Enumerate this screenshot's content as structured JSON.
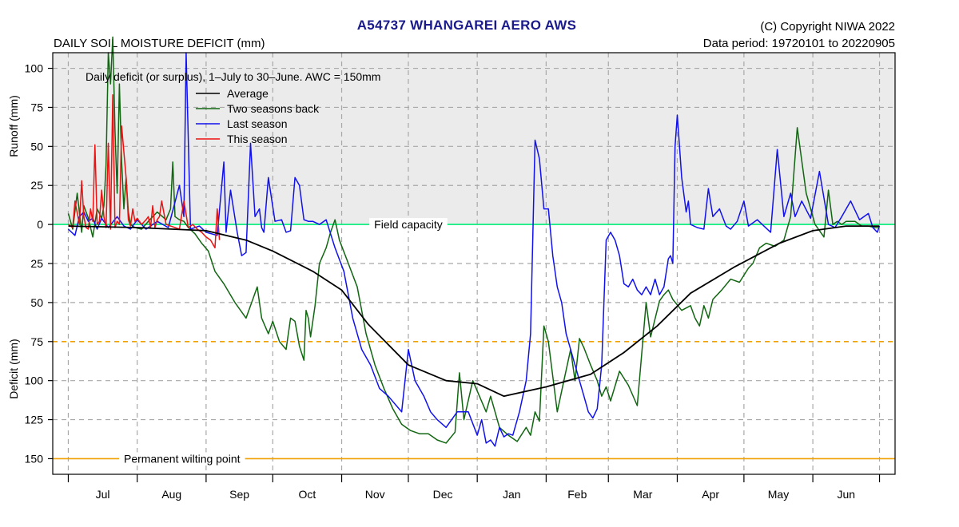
{
  "header": {
    "title": "A54737  WHANGAREI AERO AWS",
    "copyright": "(C) Copyright NIWA  2022",
    "data_period": "Data period:  19720101  to  20220905",
    "subtitle": "DAILY SOIL MOISTURE DEFICIT (mm)"
  },
  "chart_data": {
    "type": "line",
    "title": "A54737  WHANGAREI AERO AWS",
    "subtitle": "DAILY SOIL MOISTURE DEFICIT (mm)",
    "note": "Daily deficit (or surplus), 1–July to 30–June.  AWC = 150mm",
    "y_runoff_label": "Runoff (mm)",
    "y_deficit_label": "Deficit (mm)",
    "ylim": [
      -110,
      160
    ],
    "y_ticks": [
      -100,
      -75,
      -50,
      -25,
      0,
      25,
      50,
      75,
      100,
      125,
      150
    ],
    "y_tick_labels": [
      "100",
      "75",
      "50",
      "25",
      "0",
      "25",
      "50",
      "75",
      "100",
      "125",
      "150"
    ],
    "xlim": [
      -7,
      372
    ],
    "month_labels": [
      "Jul",
      "Aug",
      "Sep",
      "Oct",
      "Nov",
      "Dec",
      "Jan",
      "Feb",
      "Mar",
      "Apr",
      "May",
      "Jun"
    ],
    "month_starts": [
      0,
      31,
      62,
      92,
      123,
      153,
      184,
      215,
      243,
      274,
      304,
      335,
      365
    ],
    "reference_lines": [
      {
        "name": "Field capacity",
        "value": 0,
        "color": "#00ee77",
        "style": "solid"
      },
      {
        "name": "",
        "value": 75,
        "color": "#f0a000",
        "style": "dashed"
      },
      {
        "name": "Permanent wilting point",
        "value": 150,
        "color": "#f0a000",
        "style": "solid"
      }
    ],
    "grid": true,
    "legend_position": "top-left",
    "series": [
      {
        "name": "Average",
        "color": "#000000",
        "x": [
          0,
          31,
          62,
          80,
          92,
          110,
          123,
          135,
          153,
          170,
          184,
          196,
          215,
          235,
          250,
          265,
          280,
          300,
          320,
          335,
          350,
          365
        ],
        "y": [
          1,
          2,
          4,
          10,
          17,
          30,
          42,
          64,
          90,
          100,
          102,
          110,
          104,
          96,
          82,
          65,
          44,
          27,
          12,
          4,
          1,
          1
        ]
      },
      {
        "name": "Two seasons back",
        "color": "#116611",
        "x": [
          0,
          2,
          4,
          6,
          7,
          9,
          11,
          13,
          15,
          16,
          17,
          18,
          19,
          20,
          21,
          22,
          23,
          24,
          25,
          26,
          27,
          28,
          30,
          33,
          36,
          40,
          44,
          46,
          47,
          48,
          50,
          52,
          54,
          57,
          60,
          63,
          66,
          70,
          75,
          80,
          85,
          87,
          90,
          92,
          95,
          98,
          100,
          102,
          104,
          106,
          107,
          108,
          109,
          111,
          113,
          116,
          118,
          120,
          122,
          126,
          130,
          134,
          138,
          142,
          146,
          150,
          154,
          158,
          162,
          164,
          166,
          170,
          174,
          176,
          178,
          182,
          188,
          190,
          194,
          198,
          202,
          206,
          208,
          210,
          212,
          214,
          216,
          220,
          223,
          226,
          228,
          230,
          232,
          235,
          238,
          240,
          242,
          244,
          248,
          252,
          256,
          260,
          262,
          266,
          268,
          270,
          272,
          276,
          280,
          282,
          284,
          286,
          288,
          290,
          294,
          298,
          302,
          306,
          308,
          311,
          314,
          318,
          322,
          325,
          328,
          332,
          336,
          340,
          342,
          344,
          346,
          348,
          350,
          354,
          357,
          360,
          363,
          365
        ],
        "y": [
          -7,
          3,
          -20,
          5,
          -12,
          -4,
          8,
          -10,
          -4,
          -12,
          -38,
          -110,
          -90,
          -120,
          -60,
          -20,
          -90,
          -40,
          -10,
          -30,
          -8,
          0,
          2,
          3,
          -2,
          -8,
          -3,
          -10,
          -40,
          -5,
          -3,
          -2,
          2,
          6,
          12,
          17,
          30,
          38,
          50,
          60,
          40,
          60,
          70,
          62,
          75,
          80,
          60,
          62,
          78,
          87,
          55,
          60,
          72,
          52,
          25,
          15,
          5,
          -3,
          10,
          25,
          40,
          70,
          90,
          105,
          118,
          128,
          132,
          134,
          134,
          136,
          138,
          140,
          133,
          95,
          125,
          100,
          120,
          110,
          130,
          135,
          139,
          130,
          135,
          120,
          126,
          65,
          75,
          120,
          100,
          80,
          100,
          73,
          79,
          90,
          100,
          110,
          104,
          113,
          94,
          103,
          116,
          50,
          72,
          49,
          45,
          42,
          48,
          55,
          52,
          60,
          65,
          52,
          60,
          48,
          42,
          35,
          37,
          28,
          25,
          15,
          12,
          14,
          10,
          -5,
          -62,
          -20,
          0,
          8,
          -22,
          0,
          -2,
          0,
          -2,
          -2,
          1,
          1,
          2,
          2
        ]
      },
      {
        "name": "Last season",
        "color": "#1111ee",
        "x": [
          0,
          3,
          5,
          7,
          9,
          11,
          13,
          15,
          18,
          22,
          25,
          28,
          31,
          35,
          40,
          45,
          50,
          52,
          53,
          55,
          57,
          59,
          62,
          67,
          70,
          71,
          73,
          76,
          78,
          80,
          82,
          84,
          86,
          87,
          88,
          90,
          93,
          96,
          98,
          100,
          102,
          104,
          106,
          108,
          110,
          113,
          116,
          120,
          124,
          128,
          132,
          136,
          140,
          144,
          150,
          153,
          156,
          160,
          163,
          166,
          170,
          175,
          180,
          184,
          186,
          188,
          190,
          192,
          194,
          196,
          198,
          200,
          203,
          206,
          208,
          210,
          212,
          214,
          216,
          218,
          220,
          222,
          224,
          226,
          228,
          230,
          232,
          234,
          236,
          238,
          240,
          242,
          244,
          246,
          248,
          250,
          252,
          254,
          256,
          258,
          260,
          262,
          264,
          266,
          268,
          270,
          271,
          272,
          273,
          274,
          276,
          278,
          279,
          280,
          283,
          286,
          288,
          290,
          293,
          296,
          298,
          301,
          304,
          306,
          310,
          313,
          316,
          319,
          322,
          325,
          327,
          330,
          334,
          338,
          342,
          345,
          348,
          352,
          356,
          360,
          362,
          364,
          365
        ],
        "y": [
          3,
          7,
          -5,
          -8,
          -2,
          -4,
          3,
          -4,
          2,
          -5,
          1,
          3,
          -3,
          3,
          -2,
          2,
          -25,
          -5,
          -110,
          3,
          2,
          1,
          5,
          7,
          -40,
          5,
          -22,
          5,
          20,
          18,
          -52,
          -5,
          -10,
          2,
          5,
          -30,
          -2,
          -3,
          5,
          4,
          -30,
          -25,
          -3,
          -2,
          -2,
          0,
          -3,
          15,
          30,
          60,
          80,
          90,
          105,
          110,
          120,
          80,
          100,
          110,
          120,
          125,
          130,
          120,
          120,
          135,
          125,
          140,
          138,
          142,
          130,
          136,
          134,
          135,
          120,
          100,
          70,
          -54,
          -42,
          -10,
          -10,
          20,
          40,
          50,
          70,
          80,
          90,
          100,
          110,
          120,
          124,
          118,
          90,
          10,
          5,
          10,
          20,
          38,
          40,
          35,
          42,
          45,
          40,
          45,
          35,
          45,
          40,
          22,
          20,
          25,
          -50,
          -70,
          -30,
          -8,
          -15,
          0,
          2,
          3,
          -23,
          -5,
          -10,
          1,
          3,
          -2,
          -15,
          1,
          -3,
          1,
          5,
          -48,
          -5,
          -20,
          -5,
          -15,
          -4,
          -34,
          0,
          2,
          -5,
          -15,
          -3,
          -7,
          2,
          5,
          1
        ]
      },
      {
        "name": "This season",
        "color": "#ee1111",
        "x": [
          0,
          2,
          3,
          5,
          6,
          7,
          8,
          9,
          10,
          11,
          12,
          13,
          14,
          15,
          16,
          17,
          18,
          19,
          20,
          21,
          22,
          23,
          24,
          26,
          27,
          28,
          29,
          30,
          31,
          33,
          35,
          36,
          37,
          38,
          39,
          40,
          41,
          42,
          44,
          46,
          48,
          50,
          52,
          54,
          56,
          58,
          60,
          62,
          64,
          66,
          67,
          68
        ],
        "y": [
          0,
          2,
          -15,
          0,
          -28,
          -5,
          2,
          3,
          -10,
          -2,
          -51,
          0,
          -2,
          -22,
          -5,
          2,
          -52,
          3,
          -83,
          2,
          -2,
          0,
          -63,
          -30,
          -3,
          1,
          -10,
          -2,
          -4,
          0,
          -3,
          -5,
          2,
          -12,
          2,
          -3,
          -5,
          -15,
          0,
          1,
          2,
          3,
          -15,
          2,
          0,
          3,
          5,
          8,
          10,
          15,
          -10,
          10
        ]
      }
    ]
  }
}
